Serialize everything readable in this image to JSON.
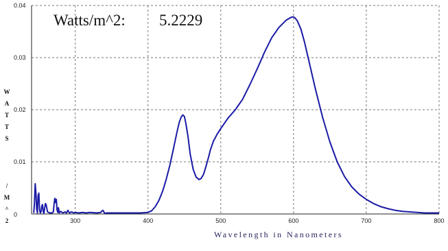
{
  "header": {
    "label": "Watts/m^2:",
    "value": "5.2229"
  },
  "chart_data": {
    "type": "line",
    "xlabel": "Wavelength in Nanometers",
    "ylabel_top": [
      "W",
      "A",
      "T",
      "T",
      "S"
    ],
    "ylabel_bottom": [
      "/",
      "M",
      "^",
      "2"
    ],
    "xlim": [
      240,
      800
    ],
    "ylim": [
      0,
      0.04
    ],
    "grid": true,
    "x_ticks": [
      300,
      400,
      500,
      600,
      700,
      800
    ],
    "y_ticks": [
      {
        "v": 0,
        "label": "0"
      },
      {
        "v": 0.01,
        "label": "0.01"
      },
      {
        "v": 0.02,
        "label": "0.02"
      },
      {
        "v": 0.03,
        "label": "0.03"
      },
      {
        "v": 0.04,
        "label": "0.04"
      }
    ],
    "line_color": "#1a1aa6",
    "grid_color": "#777777",
    "series": [
      {
        "x": [
          243,
          244,
          245,
          246,
          247,
          248,
          249,
          250,
          251,
          252,
          253,
          254,
          255,
          256,
          257,
          258,
          259,
          260,
          262,
          265,
          268,
          270,
          271,
          272,
          273,
          274,
          275,
          276,
          277,
          278,
          280,
          283,
          286,
          288,
          290,
          292,
          295,
          298,
          300,
          305,
          310,
          315,
          320,
          330,
          335,
          337,
          338,
          339,
          340,
          341,
          343,
          345,
          350,
          360,
          370,
          380,
          390,
          400,
          405,
          410,
          415,
          420,
          425,
          430,
          435,
          440,
          443,
          446,
          448,
          450,
          452,
          455,
          458,
          462,
          466,
          470,
          473,
          476,
          478,
          480,
          483,
          486,
          490,
          495,
          500,
          505,
          510,
          520,
          530,
          540,
          550,
          560,
          570,
          580,
          590,
          595,
          598,
          600,
          602,
          605,
          610,
          615,
          620,
          630,
          640,
          650,
          660,
          670,
          680,
          690,
          700,
          710,
          720,
          730,
          740,
          750,
          760,
          770,
          780,
          790,
          800
        ],
        "y": [
          0.0002,
          0.002,
          0.0058,
          0.004,
          0.001,
          0.0002,
          0.0035,
          0.004,
          0.0008,
          0.0002,
          0.0004,
          0.0015,
          0.0018,
          0.0005,
          0.0001,
          0.0012,
          0.002,
          0.0018,
          0.0004,
          0.0002,
          0.0002,
          0.0004,
          0.002,
          0.003,
          0.0022,
          0.0028,
          0.0008,
          0.0003,
          0.0012,
          0.0002,
          0.0005,
          0.0002,
          0.0004,
          0.0002,
          0.0007,
          0.0002,
          0.0004,
          0.0002,
          0.0003,
          0.0002,
          0.0003,
          0.0002,
          0.0003,
          0.0002,
          0.0003,
          0.0006,
          0.0007,
          0.0005,
          0.0002,
          0.0001,
          0.0002,
          0.0002,
          0.0002,
          0.0002,
          0.0002,
          0.0002,
          0.0002,
          0.0003,
          0.0006,
          0.0014,
          0.0026,
          0.0043,
          0.0066,
          0.0093,
          0.0125,
          0.0158,
          0.0176,
          0.0187,
          0.019,
          0.0187,
          0.0174,
          0.0148,
          0.0115,
          0.0086,
          0.0071,
          0.0066,
          0.0068,
          0.0075,
          0.0083,
          0.0093,
          0.0108,
          0.0124,
          0.014,
          0.0153,
          0.0164,
          0.0174,
          0.0184,
          0.02,
          0.022,
          0.0248,
          0.0278,
          0.031,
          0.0338,
          0.0358,
          0.0372,
          0.0376,
          0.0378,
          0.0378,
          0.0376,
          0.0371,
          0.0355,
          0.033,
          0.03,
          0.024,
          0.0185,
          0.0138,
          0.01,
          0.0072,
          0.0052,
          0.0038,
          0.0028,
          0.002,
          0.0014,
          0.001,
          0.0007,
          0.0005,
          0.0004,
          0.0003,
          0.0002,
          0.0002,
          0.0002
        ]
      }
    ]
  }
}
